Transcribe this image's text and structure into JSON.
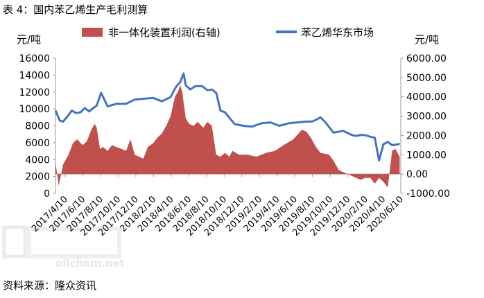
{
  "figure_caption": "表 4：国内苯乙烯生产毛利测算",
  "source_note": "资料来源：隆众资讯",
  "watermark": "oilchem.net",
  "colors": {
    "market_line": "#4472c4",
    "margin_area": "#c0504d",
    "axis": "#9a9a9a"
  },
  "chart_data": {
    "type": "line+area",
    "title": "",
    "left_axis": {
      "unit_label": "元/吨",
      "ylim": [
        0,
        16000
      ],
      "ticks": [
        0,
        2000,
        4000,
        6000,
        8000,
        10000,
        12000,
        14000,
        16000
      ],
      "tick_labels": [
        "0",
        "2000",
        "4000",
        "6000",
        "8000",
        "10000",
        "12000",
        "14000",
        "16000"
      ]
    },
    "right_axis": {
      "unit_label": "元/吨",
      "ylim": [
        -1000,
        6000
      ],
      "ticks": [
        -1000,
        0,
        1000,
        2000,
        3000,
        4000,
        5000,
        6000
      ],
      "tick_labels": [
        "-1000.00",
        "0.00",
        "1000.00",
        "2000.00",
        "3000.00",
        "4000.00",
        "5000.00",
        "6000.00"
      ]
    },
    "x_tick_labels": [
      "2017/4/10",
      "2017/6/10",
      "2017/8/10",
      "2017/10/10",
      "2017/12/10",
      "2018/2/10",
      "2018/4/10",
      "2018/6/10",
      "2018/8/10",
      "2018/10/10",
      "2018/12/10",
      "2019/2/10",
      "2019/4/10",
      "2019/6/10",
      "2019/8/10",
      "2019/10/10",
      "2019/12/10",
      "2020/2/10",
      "2020/4/10",
      "2020/6/10"
    ],
    "series": [
      {
        "name": "非一体化装置利润(右轴)",
        "type": "area",
        "axis": "right",
        "x": [
          2017.27,
          2017.3,
          2017.34,
          2017.39,
          2017.43,
          2017.47,
          2017.52,
          2017.56,
          2017.6,
          2017.63,
          2017.65,
          2017.68,
          2017.71,
          2017.75,
          2017.79,
          2017.83,
          2017.88,
          2017.92,
          2017.96,
          2018.0,
          2018.04,
          2018.08,
          2018.12,
          2018.17,
          2018.21,
          2018.25,
          2018.29,
          2018.33,
          2018.37,
          2018.4,
          2018.42,
          2018.44,
          2018.45,
          2018.47,
          2018.5,
          2018.54,
          2018.58,
          2018.63,
          2018.67,
          2018.71,
          2018.75,
          2018.79,
          2018.83,
          2018.87,
          2018.9,
          2018.96,
          2019.04,
          2019.12,
          2019.21,
          2019.29,
          2019.37,
          2019.46,
          2019.54,
          2019.58,
          2019.62,
          2019.67,
          2019.71,
          2019.79,
          2019.83,
          2019.88,
          2019.92,
          2020.0,
          2020.04,
          2020.08,
          2020.12,
          2020.17,
          2020.21,
          2020.25,
          2020.29,
          2020.33,
          2020.37,
          2020.4,
          2020.44
        ],
        "values": [
          600,
          -600,
          500,
          1000,
          1600,
          1800,
          1500,
          1700,
          2300,
          2600,
          2400,
          1300,
          1400,
          1200,
          1500,
          1400,
          1300,
          1200,
          1800,
          1000,
          900,
          800,
          1400,
          1600,
          1900,
          2100,
          2500,
          3000,
          4000,
          4300,
          4600,
          4200,
          3700,
          2900,
          2600,
          2500,
          2700,
          2400,
          2700,
          2500,
          1000,
          900,
          1100,
          900,
          1200,
          1000,
          1000,
          900,
          1100,
          1200,
          1500,
          1800,
          2300,
          2200,
          1900,
          1400,
          1100,
          1000,
          700,
          200,
          100,
          -100,
          -200,
          -300,
          -200,
          -200,
          -500,
          -200,
          -400,
          -700,
          1200,
          1300,
          900
        ]
      },
      {
        "name": "苯乙烯华东市场",
        "type": "line",
        "axis": "left",
        "x": [
          2017.27,
          2017.31,
          2017.34,
          2017.38,
          2017.42,
          2017.46,
          2017.5,
          2017.54,
          2017.58,
          2017.61,
          2017.65,
          2017.69,
          2017.75,
          2017.83,
          2017.92,
          2018.0,
          2018.08,
          2018.17,
          2018.25,
          2018.33,
          2018.38,
          2018.42,
          2018.45,
          2018.47,
          2018.51,
          2018.56,
          2018.62,
          2018.67,
          2018.71,
          2018.75,
          2018.79,
          2018.83,
          2018.92,
          2019.0,
          2019.08,
          2019.17,
          2019.25,
          2019.33,
          2019.42,
          2019.5,
          2019.58,
          2019.63,
          2019.67,
          2019.71,
          2019.75,
          2019.83,
          2019.92,
          2020.0,
          2020.04,
          2020.08,
          2020.12,
          2020.17,
          2020.21,
          2020.25,
          2020.29,
          2020.33,
          2020.37,
          2020.42,
          2020.44
        ],
        "values": [
          9800,
          8600,
          8500,
          9100,
          9800,
          9500,
          9600,
          10100,
          9700,
          10000,
          10400,
          11900,
          10300,
          10600,
          10600,
          11100,
          11200,
          11300,
          10900,
          11400,
          12600,
          13200,
          14200,
          12800,
          12300,
          12700,
          12700,
          12200,
          12300,
          11900,
          9800,
          9600,
          8200,
          8000,
          7900,
          8300,
          8400,
          8000,
          8300,
          8400,
          8500,
          8500,
          8700,
          9000,
          8500,
          7200,
          7400,
          6900,
          6800,
          6900,
          6900,
          6700,
          6600,
          3900,
          5800,
          6100,
          5700,
          5800,
          5900
        ]
      }
    ]
  }
}
